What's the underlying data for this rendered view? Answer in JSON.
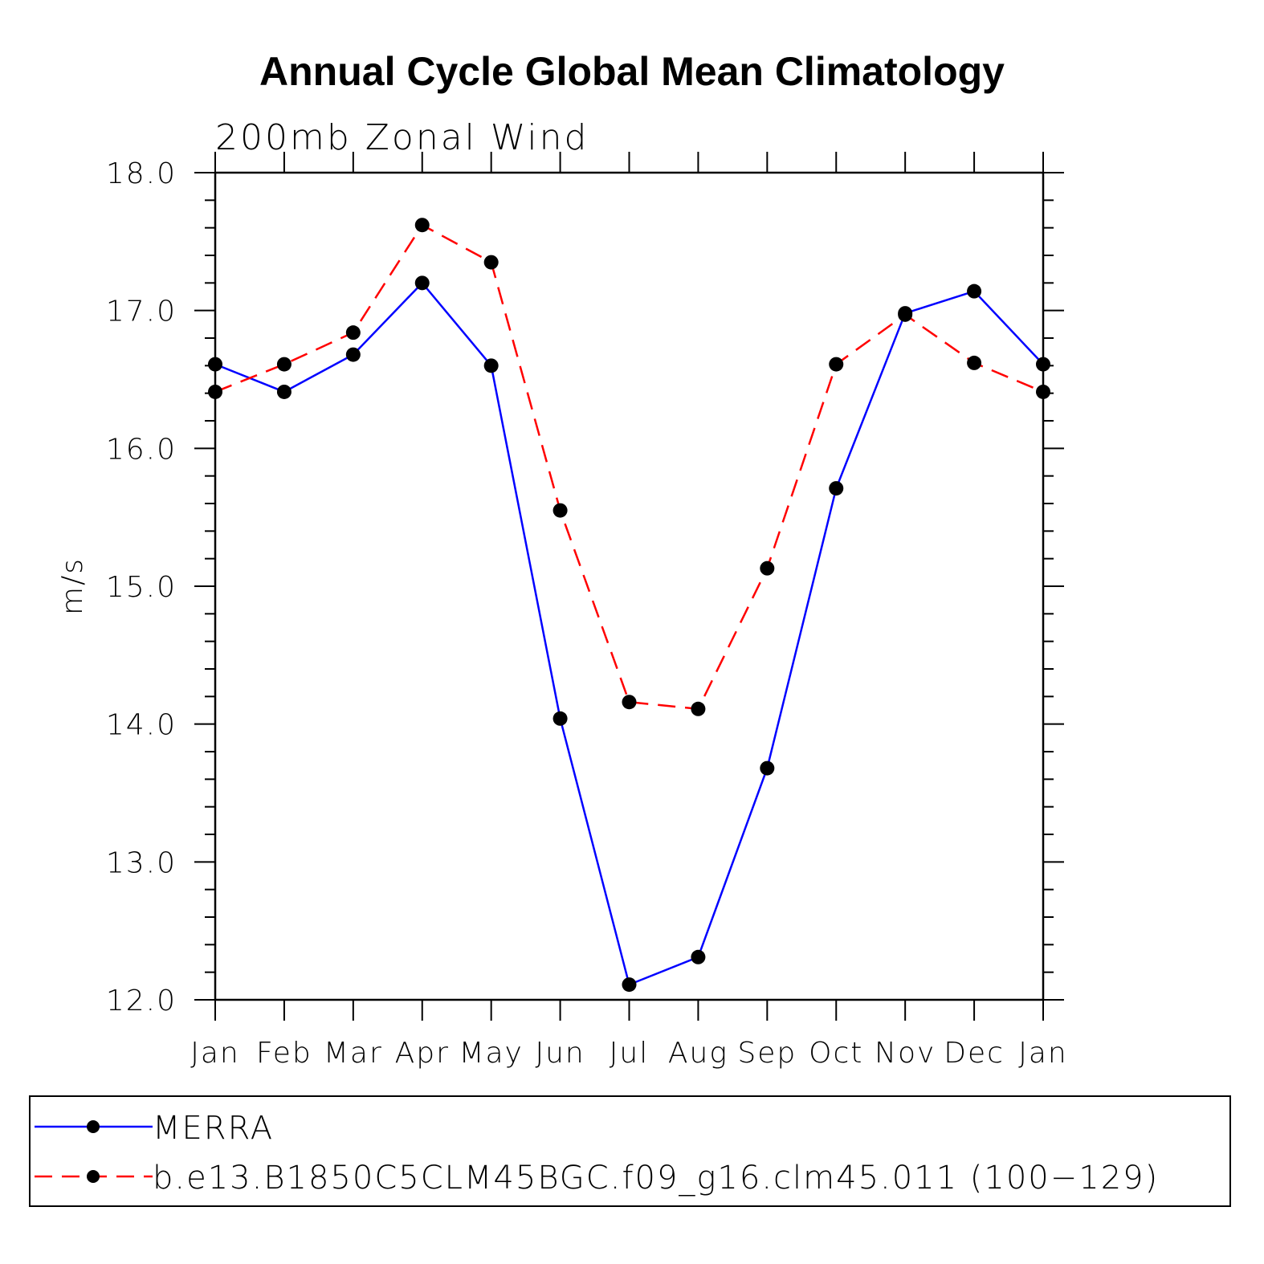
{
  "chart_data": {
    "type": "line",
    "title": "Annual Cycle Global Mean Climatology",
    "subtitle": "200mb Zonal Wind",
    "ylabel": "m/s",
    "xlabel": "",
    "categories": [
      "Jan",
      "Feb",
      "Mar",
      "Apr",
      "May",
      "Jun",
      "Jul",
      "Aug",
      "Sep",
      "Oct",
      "Nov",
      "Dec",
      "Jan"
    ],
    "ylim": [
      12.0,
      18.0
    ],
    "yticks": [
      "12.0",
      "13.0",
      "14.0",
      "15.0",
      "16.0",
      "17.0",
      "18.0"
    ],
    "grid": false,
    "legend_position": "bottom",
    "series": [
      {
        "name": "MERRA",
        "color": "#0000ff",
        "line_style": "solid",
        "marker": "filled-circle",
        "values": [
          16.61,
          16.41,
          16.68,
          17.2,
          16.6,
          14.04,
          12.11,
          12.31,
          13.68,
          15.71,
          16.98,
          17.14,
          16.61
        ]
      },
      {
        "name": "b.e13.B1850C5CLM45BGC.f09_g16.clm45.011 (100−129)",
        "color": "#ff0000",
        "line_style": "dashed",
        "marker": "filled-circle",
        "values": [
          16.41,
          16.61,
          16.84,
          17.62,
          17.35,
          15.55,
          14.16,
          14.11,
          15.13,
          16.61,
          16.97,
          16.62,
          16.41
        ]
      }
    ]
  }
}
